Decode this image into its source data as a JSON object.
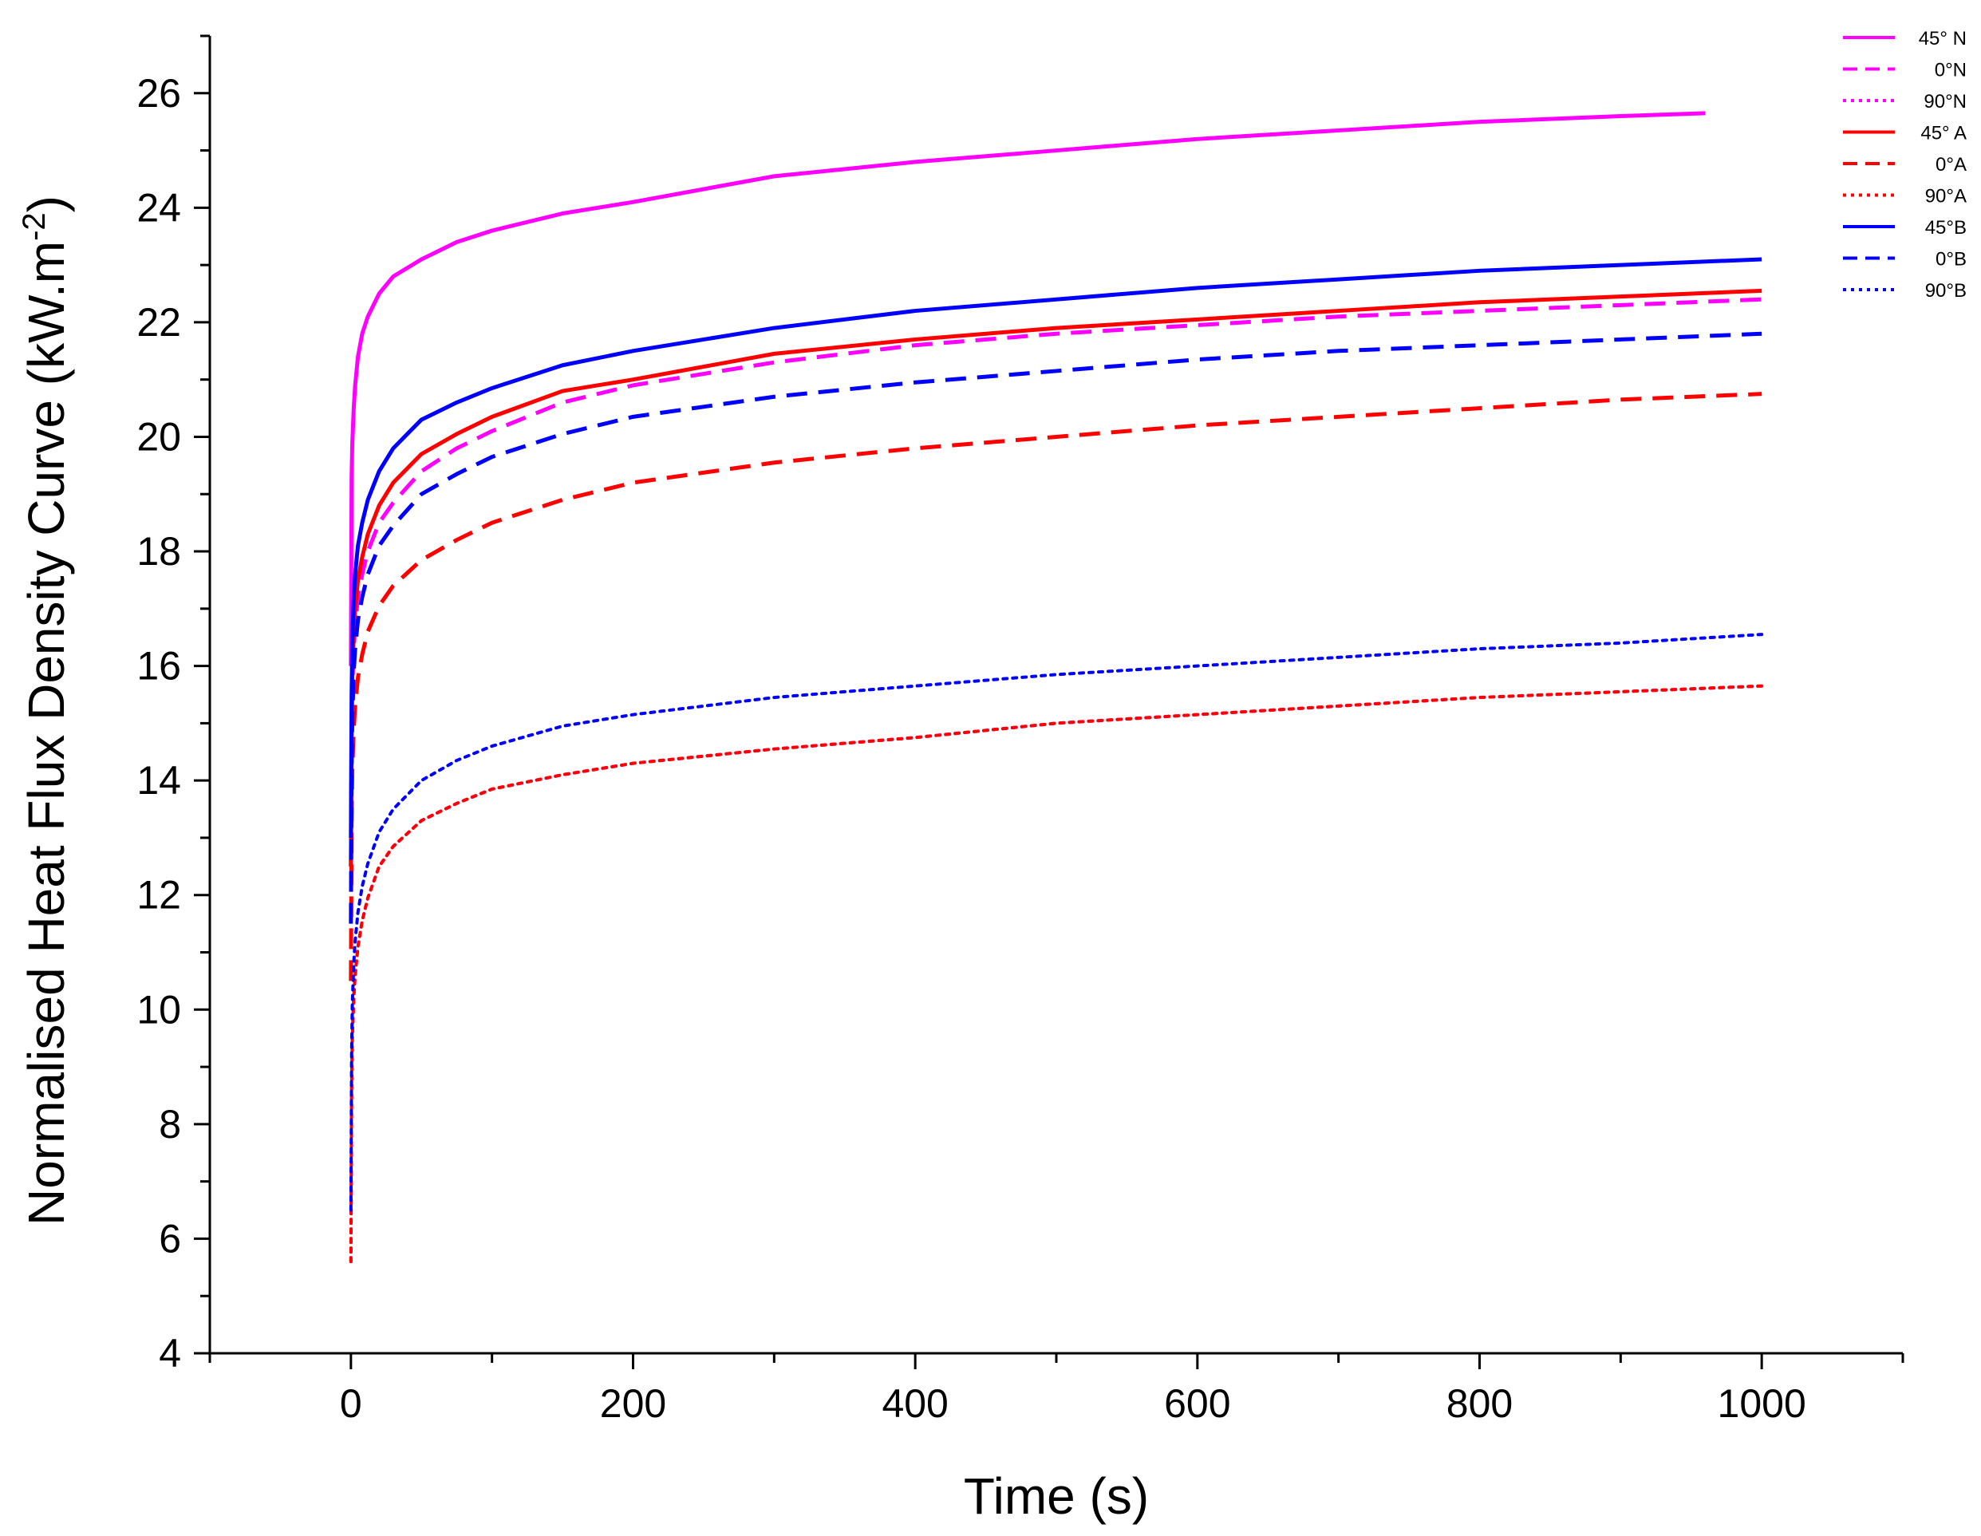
{
  "chart_data": {
    "type": "line",
    "title": "",
    "xlabel": "Time (s)",
    "ylabel": {
      "main": "Normalised Heat Flux Density Curve (kW.m",
      "superscript": "-2",
      "close": ")"
    },
    "xlim": [
      -100,
      1100
    ],
    "ylim": [
      4,
      27
    ],
    "xticks": [
      0,
      200,
      400,
      600,
      800,
      1000
    ],
    "yticks": [
      4,
      6,
      8,
      10,
      12,
      14,
      16,
      18,
      20,
      22,
      24,
      26
    ],
    "grid": false,
    "legend_position": "top-right",
    "series": [
      {
        "name": "45° N",
        "color": "#ff00ff",
        "style": "solid",
        "x": [
          0,
          0.5,
          1,
          2,
          3,
          5,
          8,
          12,
          20,
          30,
          50,
          75,
          100,
          150,
          200,
          300,
          400,
          500,
          600,
          700,
          800,
          900,
          960
        ],
        "y": [
          16.0,
          19.3,
          19.9,
          20.5,
          20.9,
          21.4,
          21.8,
          22.1,
          22.5,
          22.8,
          23.1,
          23.4,
          23.6,
          23.9,
          24.1,
          24.55,
          24.8,
          25.0,
          25.2,
          25.35,
          25.5,
          25.6,
          25.65
        ]
      },
      {
        "name": "0°N",
        "color": "#ff00ff",
        "style": "dash",
        "x": [
          0,
          0.5,
          1,
          2,
          3,
          5,
          8,
          12,
          20,
          30,
          50,
          75,
          100,
          150,
          200,
          300,
          400,
          500,
          600,
          700,
          800,
          900,
          1000
        ],
        "y": [
          12.5,
          14.8,
          15.6,
          16.3,
          16.7,
          17.2,
          17.6,
          18.0,
          18.5,
          18.85,
          19.4,
          19.8,
          20.1,
          20.6,
          20.9,
          21.3,
          21.6,
          21.8,
          21.95,
          22.1,
          22.2,
          22.3,
          22.4
        ]
      },
      {
        "name": "90°N",
        "color": "#ff00ff",
        "style": "dot",
        "x": [
          0,
          0.5,
          1,
          2,
          3,
          5,
          8,
          12,
          20,
          30,
          50,
          75,
          100,
          150,
          200,
          300,
          400,
          500,
          600,
          700,
          800,
          900,
          1000
        ],
        "y": [
          5.6,
          8.6,
          9.5,
          10.2,
          10.6,
          11.1,
          11.55,
          11.95,
          12.5,
          12.85,
          13.3,
          13.6,
          13.85,
          14.1,
          14.3,
          14.55,
          14.75,
          15.0,
          15.15,
          15.3,
          15.45,
          15.55,
          15.65
        ]
      },
      {
        "name": "45° A",
        "color": "#ff0000",
        "style": "solid",
        "x": [
          0,
          0.5,
          1,
          2,
          3,
          5,
          8,
          12,
          20,
          30,
          50,
          75,
          100,
          150,
          200,
          300,
          400,
          500,
          600,
          700,
          800,
          900,
          1000
        ],
        "y": [
          12.5,
          15.0,
          15.8,
          16.6,
          17.0,
          17.5,
          17.9,
          18.3,
          18.8,
          19.2,
          19.7,
          20.05,
          20.35,
          20.8,
          21.0,
          21.45,
          21.7,
          21.9,
          22.05,
          22.2,
          22.35,
          22.45,
          22.55
        ]
      },
      {
        "name": "0°A",
        "color": "#ff0000",
        "style": "dash",
        "x": [
          0,
          0.5,
          1,
          2,
          3,
          5,
          8,
          12,
          20,
          30,
          50,
          75,
          100,
          150,
          200,
          300,
          400,
          500,
          600,
          700,
          800,
          900,
          1000
        ],
        "y": [
          10.5,
          13.3,
          14.2,
          14.9,
          15.3,
          15.8,
          16.2,
          16.6,
          17.05,
          17.4,
          17.85,
          18.2,
          18.5,
          18.9,
          19.2,
          19.55,
          19.8,
          20.0,
          20.2,
          20.35,
          20.5,
          20.65,
          20.75
        ]
      },
      {
        "name": "90°A",
        "color": "#ff0000",
        "style": "dot",
        "x": [
          0,
          0.5,
          1,
          2,
          3,
          5,
          8,
          12,
          20,
          30,
          50,
          75,
          100,
          150,
          200,
          300,
          400,
          500,
          600,
          700,
          800,
          900,
          1000
        ],
        "y": [
          5.6,
          8.6,
          9.5,
          10.2,
          10.6,
          11.1,
          11.55,
          11.95,
          12.5,
          12.85,
          13.3,
          13.6,
          13.85,
          14.1,
          14.3,
          14.55,
          14.75,
          15.0,
          15.15,
          15.3,
          15.45,
          15.55,
          15.65
        ]
      },
      {
        "name": "45°B",
        "color": "#0000ff",
        "style": "solid",
        "x": [
          0,
          0.5,
          1,
          2,
          3,
          5,
          8,
          12,
          20,
          30,
          50,
          75,
          100,
          150,
          200,
          300,
          400,
          500,
          600,
          700,
          800,
          900,
          1000
        ],
        "y": [
          13.0,
          15.5,
          16.4,
          17.2,
          17.6,
          18.1,
          18.5,
          18.9,
          19.4,
          19.8,
          20.3,
          20.6,
          20.85,
          21.25,
          21.5,
          21.9,
          22.2,
          22.4,
          22.6,
          22.75,
          22.9,
          23.0,
          23.1
        ]
      },
      {
        "name": "0°B",
        "color": "#0000ff",
        "style": "dash",
        "x": [
          0,
          0.5,
          1,
          2,
          3,
          5,
          8,
          12,
          20,
          30,
          50,
          75,
          100,
          150,
          200,
          300,
          400,
          500,
          600,
          700,
          800,
          900,
          1000
        ],
        "y": [
          11.5,
          14.2,
          15.1,
          15.9,
          16.3,
          16.8,
          17.2,
          17.6,
          18.1,
          18.45,
          19.0,
          19.35,
          19.65,
          20.05,
          20.35,
          20.7,
          20.95,
          21.15,
          21.35,
          21.5,
          21.6,
          21.7,
          21.8
        ]
      },
      {
        "name": "90°B",
        "color": "#0000ff",
        "style": "dot",
        "x": [
          0,
          0.5,
          1,
          2,
          3,
          5,
          8,
          12,
          20,
          30,
          50,
          75,
          100,
          150,
          200,
          300,
          400,
          500,
          600,
          700,
          800,
          900,
          1000
        ],
        "y": [
          6.5,
          9.2,
          10.1,
          10.8,
          11.2,
          11.7,
          12.15,
          12.55,
          13.1,
          13.5,
          14.0,
          14.35,
          14.6,
          14.95,
          15.15,
          15.45,
          15.65,
          15.85,
          16.0,
          16.15,
          16.3,
          16.4,
          16.55
        ]
      }
    ]
  }
}
